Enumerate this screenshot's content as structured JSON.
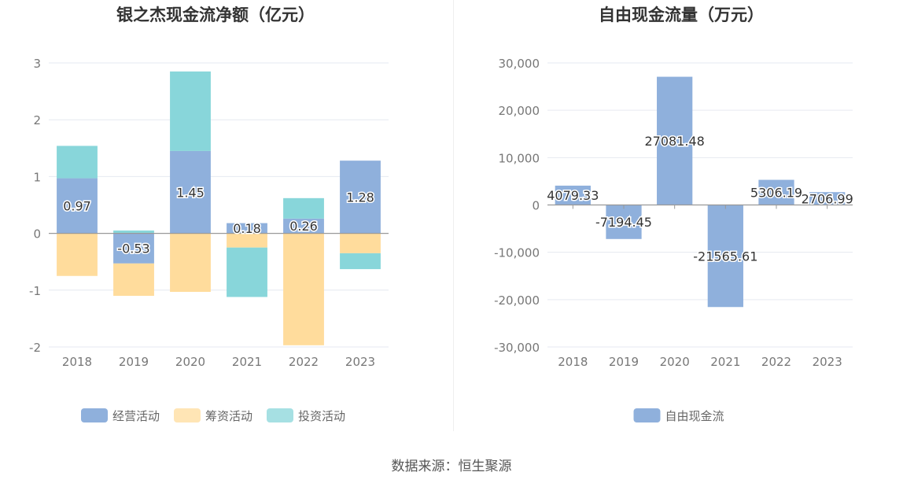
{
  "source_text": "数据来源：恒生聚源",
  "chart_data": [
    {
      "type": "bar",
      "stacked": true,
      "title": "银之杰现金流净额（亿元）",
      "categories": [
        "2018",
        "2019",
        "2020",
        "2021",
        "2022",
        "2023"
      ],
      "ylim": [
        -2,
        3
      ],
      "yticks": [
        -2,
        -1,
        0,
        1,
        2,
        3
      ],
      "grid": true,
      "legend_position": "bottom",
      "series": [
        {
          "name": "经营活动",
          "color": "#8fb0dc",
          "values": [
            0.97,
            -0.53,
            1.45,
            0.18,
            0.26,
            1.28
          ],
          "labels": [
            "0.97",
            "-0.53",
            "1.45",
            "0.18",
            "0.26",
            "1.28"
          ]
        },
        {
          "name": "筹资活动",
          "color": "#ffdc9c",
          "values": [
            -0.75,
            -0.57,
            -1.03,
            -0.25,
            -1.97,
            -0.35
          ],
          "labels": []
        },
        {
          "name": "投资活动",
          "color": "#88d6da",
          "values": [
            0.57,
            0.05,
            1.4,
            -0.87,
            0.36,
            -0.28
          ],
          "labels": []
        }
      ]
    },
    {
      "type": "bar",
      "title": "自由现金流量（万元）",
      "categories": [
        "2018",
        "2019",
        "2020",
        "2021",
        "2022",
        "2023"
      ],
      "ylim": [
        -30000,
        30000
      ],
      "yticks": [
        -30000,
        -20000,
        -10000,
        0,
        10000,
        20000,
        30000
      ],
      "ytick_labels": [
        "-30,000",
        "-20,000",
        "-10,000",
        "0",
        "10,000",
        "20,000",
        "30,000"
      ],
      "grid": true,
      "legend_position": "bottom",
      "series": [
        {
          "name": "自由现金流",
          "color": "#8fb0dc",
          "values": [
            4079.33,
            -7194.45,
            27081.48,
            -21565.61,
            5306.19,
            2706.99
          ],
          "labels": [
            "4079.33",
            "-7194.45",
            "27081.48",
            "-21565.61",
            "5306.19",
            "2706.99"
          ]
        }
      ]
    }
  ]
}
